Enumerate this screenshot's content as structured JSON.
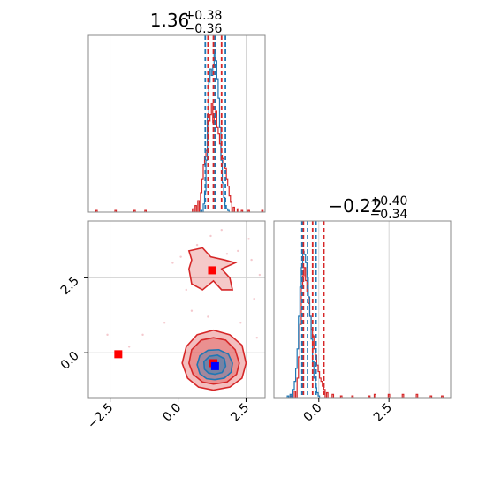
{
  "chart_data": {
    "type": "corner",
    "colors": {
      "blue": "#1f77b4",
      "red": "#d62728",
      "blue_marker": "#0000ff",
      "red_marker": "#ff0000",
      "grid": "#cccccc",
      "frame": "#888888"
    },
    "panel_top_left": {
      "type": "histogram",
      "title": {
        "main": "1.36",
        "sup": "+0.38",
        "sub": "−0.36"
      },
      "xlim": [
        -3.3,
        3.2
      ],
      "blue_quantiles": [
        1.0,
        1.36,
        1.74
      ],
      "red_quantiles": [
        1.1,
        1.3,
        1.6
      ],
      "blue_counts": [
        [
          0.85,
          0.01
        ],
        [
          0.95,
          0.05
        ],
        [
          1.0,
          0.13
        ],
        [
          1.05,
          0.32
        ],
        [
          1.1,
          0.6
        ],
        [
          1.15,
          0.8
        ],
        [
          1.2,
          0.88
        ],
        [
          1.25,
          0.84
        ],
        [
          1.3,
          0.9
        ],
        [
          1.35,
          0.99
        ],
        [
          1.4,
          0.93
        ],
        [
          1.45,
          0.82
        ],
        [
          1.5,
          0.7
        ],
        [
          1.55,
          0.52
        ],
        [
          1.6,
          0.32
        ],
        [
          1.65,
          0.18
        ],
        [
          1.7,
          0.09
        ],
        [
          1.75,
          0.04
        ],
        [
          1.8,
          0.02
        ],
        [
          1.85,
          0.01
        ]
      ],
      "red_counts": [
        [
          -3.0,
          0.01
        ],
        [
          -2.3,
          0.01
        ],
        [
          -1.6,
          0.01
        ],
        [
          -1.2,
          0.01
        ],
        [
          0.55,
          0.02
        ],
        [
          0.65,
          0.04
        ],
        [
          0.75,
          0.07
        ],
        [
          0.85,
          0.12
        ],
        [
          0.9,
          0.2
        ],
        [
          0.95,
          0.29
        ],
        [
          1.0,
          0.34
        ],
        [
          1.05,
          0.38
        ],
        [
          1.1,
          0.45
        ],
        [
          1.15,
          0.56
        ],
        [
          1.2,
          0.6
        ],
        [
          1.25,
          0.67
        ],
        [
          1.3,
          0.55
        ],
        [
          1.35,
          0.59
        ],
        [
          1.4,
          0.62
        ],
        [
          1.45,
          0.52
        ],
        [
          1.5,
          0.48
        ],
        [
          1.55,
          0.42
        ],
        [
          1.6,
          0.35
        ],
        [
          1.65,
          0.33
        ],
        [
          1.7,
          0.3
        ],
        [
          1.75,
          0.27
        ],
        [
          1.8,
          0.2
        ],
        [
          1.85,
          0.16
        ],
        [
          1.9,
          0.1
        ],
        [
          1.95,
          0.06
        ],
        [
          2.05,
          0.03
        ],
        [
          2.2,
          0.02
        ],
        [
          2.35,
          0.01
        ],
        [
          2.6,
          0.01
        ],
        [
          3.1,
          0.01
        ]
      ]
    },
    "panel_bottom_left": {
      "type": "scatter-contour",
      "xlim": [
        -3.3,
        3.2
      ],
      "ylim": [
        -1.5,
        4.4
      ],
      "x_ticks": [
        -2.5,
        0.0,
        2.5
      ],
      "x_tick_labels": [
        "−2.5",
        "0.0",
        "2.5"
      ],
      "y_ticks": [
        0.0,
        2.5
      ],
      "y_tick_labels": [
        "0.0",
        "2.5"
      ],
      "blue_point": [
        1.36,
        -0.45
      ],
      "red_points": [
        [
          1.25,
          2.75
        ],
        [
          1.3,
          -0.35
        ],
        [
          -2.2,
          -0.05
        ]
      ],
      "red_scatter": [
        [
          0.7,
          3.6
        ],
        [
          1.8,
          3.3
        ],
        [
          2.2,
          3.4
        ],
        [
          2.6,
          3.8
        ],
        [
          1.2,
          3.9
        ],
        [
          2.8,
          1.8
        ],
        [
          1.1,
          1.2
        ],
        [
          -0.2,
          3.0
        ],
        [
          0.3,
          2.1
        ],
        [
          -0.5,
          1.0
        ],
        [
          -1.3,
          0.6
        ],
        [
          2.3,
          1.0
        ],
        [
          2.9,
          0.5
        ],
        [
          2.7,
          3.1
        ],
        [
          -2.6,
          0.6
        ],
        [
          1.6,
          4.1
        ],
        [
          0.1,
          3.2
        ],
        [
          0.5,
          1.4
        ],
        [
          -1.8,
          0.2
        ],
        [
          3.0,
          2.6
        ]
      ],
      "red_contours": [
        [
          [
            1.3,
            -1.25
          ],
          [
            1.9,
            -1.15
          ],
          [
            2.35,
            -0.85
          ],
          [
            2.5,
            -0.35
          ],
          [
            2.35,
            0.25
          ],
          [
            1.9,
            0.6
          ],
          [
            1.3,
            0.75
          ],
          [
            0.7,
            0.6
          ],
          [
            0.3,
            0.2
          ],
          [
            0.15,
            -0.35
          ],
          [
            0.35,
            -0.85
          ],
          [
            0.75,
            -1.15
          ]
        ],
        [
          [
            1.3,
            -1.05
          ],
          [
            1.8,
            -0.98
          ],
          [
            2.15,
            -0.72
          ],
          [
            2.25,
            -0.35
          ],
          [
            2.1,
            0.1
          ],
          [
            1.75,
            0.42
          ],
          [
            1.3,
            0.5
          ],
          [
            0.85,
            0.42
          ],
          [
            0.5,
            0.1
          ],
          [
            0.4,
            -0.35
          ],
          [
            0.55,
            -0.72
          ],
          [
            0.9,
            -0.98
          ]
        ],
        [
          [
            0.4,
            3.4
          ],
          [
            0.9,
            3.5
          ],
          [
            1.2,
            3.2
          ],
          [
            1.7,
            3.1
          ],
          [
            2.1,
            3.0
          ],
          [
            1.6,
            2.8
          ],
          [
            1.9,
            2.5
          ],
          [
            2.0,
            2.1
          ],
          [
            1.6,
            2.1
          ],
          [
            1.3,
            2.4
          ],
          [
            0.9,
            2.1
          ],
          [
            0.5,
            2.3
          ],
          [
            0.4,
            2.8
          ],
          [
            0.5,
            3.1
          ]
        ]
      ],
      "blue_contours": [
        [
          [
            1.35,
            -0.9
          ],
          [
            1.7,
            -0.85
          ],
          [
            1.95,
            -0.65
          ],
          [
            2.0,
            -0.35
          ],
          [
            1.85,
            -0.05
          ],
          [
            1.5,
            0.1
          ],
          [
            1.1,
            0.08
          ],
          [
            0.8,
            -0.1
          ],
          [
            0.7,
            -0.4
          ],
          [
            0.8,
            -0.7
          ],
          [
            1.05,
            -0.87
          ]
        ],
        [
          [
            1.35,
            -0.72
          ],
          [
            1.62,
            -0.66
          ],
          [
            1.75,
            -0.45
          ],
          [
            1.7,
            -0.2
          ],
          [
            1.45,
            -0.08
          ],
          [
            1.15,
            -0.12
          ],
          [
            0.95,
            -0.3
          ],
          [
            0.97,
            -0.55
          ],
          [
            1.12,
            -0.68
          ]
        ]
      ]
    },
    "panel_bottom_right": {
      "type": "histogram",
      "title": {
        "main": "−0.22",
        "sup": "+0.40",
        "sub": "−0.34"
      },
      "xlim": [
        -1.6,
        4.7
      ],
      "x_ticks": [
        0.0,
        2.5
      ],
      "x_tick_labels": [
        "0.0",
        "2.5"
      ],
      "blue_quantiles": [
        -0.6,
        -0.4,
        -0.1
      ],
      "red_quantiles": [
        -0.55,
        -0.22,
        0.18
      ],
      "blue_counts": [
        [
          -1.1,
          0.01
        ],
        [
          -1.0,
          0.02
        ],
        [
          -0.9,
          0.05
        ],
        [
          -0.85,
          0.1
        ],
        [
          -0.8,
          0.18
        ],
        [
          -0.75,
          0.3
        ],
        [
          -0.7,
          0.5
        ],
        [
          -0.65,
          0.68
        ],
        [
          -0.6,
          0.8
        ],
        [
          -0.55,
          0.9
        ],
        [
          -0.5,
          0.88
        ],
        [
          -0.45,
          0.83
        ],
        [
          -0.4,
          0.74
        ],
        [
          -0.35,
          0.62
        ],
        [
          -0.3,
          0.5
        ],
        [
          -0.25,
          0.36
        ],
        [
          -0.2,
          0.22
        ],
        [
          -0.15,
          0.12
        ],
        [
          -0.1,
          0.06
        ],
        [
          -0.05,
          0.03
        ],
        [
          0.0,
          0.01
        ]
      ],
      "red_counts": [
        [
          -1.0,
          0.01
        ],
        [
          -0.85,
          0.04
        ],
        [
          -0.75,
          0.12
        ],
        [
          -0.7,
          0.25
        ],
        [
          -0.65,
          0.45
        ],
        [
          -0.6,
          0.68
        ],
        [
          -0.55,
          0.75
        ],
        [
          -0.5,
          0.8
        ],
        [
          -0.45,
          0.72
        ],
        [
          -0.4,
          0.65
        ],
        [
          -0.35,
          0.58
        ],
        [
          -0.3,
          0.5
        ],
        [
          -0.25,
          0.42
        ],
        [
          -0.2,
          0.38
        ],
        [
          -0.15,
          0.3
        ],
        [
          -0.1,
          0.26
        ],
        [
          -0.05,
          0.2
        ],
        [
          0.0,
          0.16
        ],
        [
          0.05,
          0.12
        ],
        [
          0.1,
          0.1
        ],
        [
          0.15,
          0.07
        ],
        [
          0.2,
          0.05
        ],
        [
          0.3,
          0.03
        ],
        [
          0.5,
          0.02
        ],
        [
          0.8,
          0.01
        ],
        [
          1.2,
          0.01
        ],
        [
          1.8,
          0.01
        ],
        [
          2.0,
          0.02
        ],
        [
          2.5,
          0.02
        ],
        [
          3.0,
          0.02
        ],
        [
          3.5,
          0.02
        ],
        [
          4.0,
          0.01
        ],
        [
          4.4,
          0.01
        ]
      ]
    }
  }
}
